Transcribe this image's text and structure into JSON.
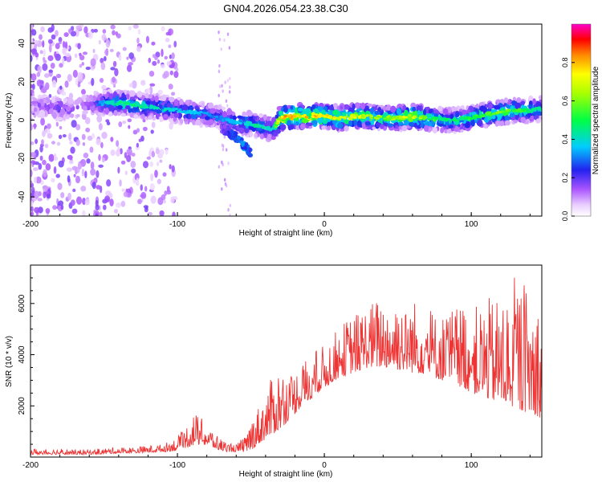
{
  "title": "GN04.2026.054.23.38.C30",
  "colors": {
    "line": "#ee3333",
    "axis": "#000000"
  },
  "chart_data": [
    {
      "type": "heatmap",
      "title": "GN04.2026.054.23.38.C30",
      "xlabel": "Height of straight line (km)",
      "ylabel": "Frequency (Hz)",
      "xlim": [
        -200,
        148
      ],
      "ylim": [
        -50,
        50
      ],
      "xticks": [
        -200,
        -100,
        0,
        100
      ],
      "yticks": [
        -40,
        -20,
        0,
        20,
        40
      ],
      "colorbar": {
        "label": "Normalized spectral amplitude",
        "range": [
          0,
          1
        ],
        "ticks": [
          "0.0",
          "0.2",
          "0.4",
          "0.6",
          "0.8"
        ],
        "colormap": "white-purple-blue-cyan-green-yellow-red-magenta"
      },
      "ridge": {
        "x": [
          -200,
          -190,
          -180,
          -170,
          -160,
          -150,
          -140,
          -130,
          -120,
          -110,
          -100,
          -90,
          -80,
          -70,
          -60,
          -50,
          -45,
          -40,
          -35,
          -30,
          -20,
          -10,
          0,
          10,
          20,
          30,
          40,
          50,
          60,
          70,
          80,
          90,
          100,
          110,
          120,
          130,
          140,
          148
        ],
        "y": [
          8,
          7,
          6,
          6,
          8,
          9,
          9,
          8,
          7,
          6,
          5,
          4,
          3,
          1,
          -1,
          -2,
          -3,
          -4,
          -5,
          1,
          2,
          2,
          2,
          1,
          2,
          2,
          1,
          1,
          2,
          1,
          0,
          0,
          1,
          3,
          4,
          5,
          5,
          6
        ],
        "amplitude": [
          0.15,
          0.2,
          0.25,
          0.2,
          0.2,
          0.4,
          0.5,
          0.5,
          0.45,
          0.45,
          0.4,
          0.4,
          0.35,
          0.35,
          0.4,
          0.45,
          0.5,
          0.45,
          0.4,
          0.85,
          0.9,
          0.85,
          0.8,
          0.75,
          0.75,
          0.7,
          0.65,
          0.7,
          0.75,
          0.6,
          0.5,
          0.5,
          0.55,
          0.6,
          0.65,
          0.6,
          0.5,
          0.45
        ]
      },
      "secondary_branch": {
        "x": [
          -70,
          -60,
          -55,
          -50
        ],
        "y": [
          -4,
          -9,
          -13,
          -17
        ],
        "amplitude": [
          0.2,
          0.3,
          0.35,
          0.3
        ]
      }
    },
    {
      "type": "line",
      "xlabel": "Height of straight line (km)",
      "ylabel": "SNR (10 * v/v)",
      "xlim": [
        -200,
        148
      ],
      "ylim": [
        0,
        7500
      ],
      "xticks": [
        -200,
        -100,
        0,
        100
      ],
      "yticks": [
        2000,
        4000,
        6000
      ],
      "series": [
        {
          "name": "SNR",
          "x": [
            -200,
            -190,
            -180,
            -170,
            -160,
            -150,
            -140,
            -130,
            -120,
            -110,
            -100,
            -95,
            -90,
            -85,
            -80,
            -75,
            -70,
            -65,
            -60,
            -55,
            -50,
            -45,
            -40,
            -35,
            -30,
            -25,
            -20,
            -15,
            -10,
            -5,
            0,
            5,
            10,
            15,
            20,
            25,
            30,
            35,
            40,
            45,
            50,
            55,
            60,
            65,
            70,
            75,
            80,
            85,
            90,
            95,
            100,
            105,
            110,
            115,
            120,
            125,
            130,
            135,
            140,
            145,
            148
          ],
          "envelope_low": [
            100,
            100,
            100,
            100,
            100,
            120,
            150,
            150,
            180,
            200,
            250,
            350,
            450,
            500,
            450,
            350,
            250,
            200,
            200,
            200,
            250,
            500,
            700,
            900,
            1100,
            1400,
            1700,
            2000,
            2200,
            2500,
            2700,
            2900,
            3100,
            3200,
            3300,
            3400,
            3500,
            3500,
            3500,
            3500,
            3400,
            3400,
            3300,
            3300,
            3200,
            3100,
            3000,
            2900,
            2800,
            2700,
            2500,
            2400,
            2300,
            2200,
            2100,
            2000,
            1900,
            1800,
            1700,
            1600,
            1500
          ],
          "envelope_high": [
            350,
            300,
            350,
            300,
            300,
            350,
            400,
            400,
            450,
            500,
            800,
            1100,
            1800,
            1600,
            1300,
            1000,
            700,
            600,
            500,
            800,
            1500,
            2000,
            2600,
            3200,
            3700,
            3300,
            3400,
            3800,
            4000,
            4200,
            4400,
            4800,
            5000,
            5400,
            5600,
            5800,
            6000,
            6200,
            6300,
            6000,
            6600,
            5800,
            6300,
            5900,
            6000,
            5700,
            5600,
            5800,
            6000,
            6200,
            6000,
            5900,
            6300,
            6100,
            6500,
            6400,
            7200,
            6900,
            6500,
            6200,
            6000
          ]
        }
      ]
    }
  ]
}
